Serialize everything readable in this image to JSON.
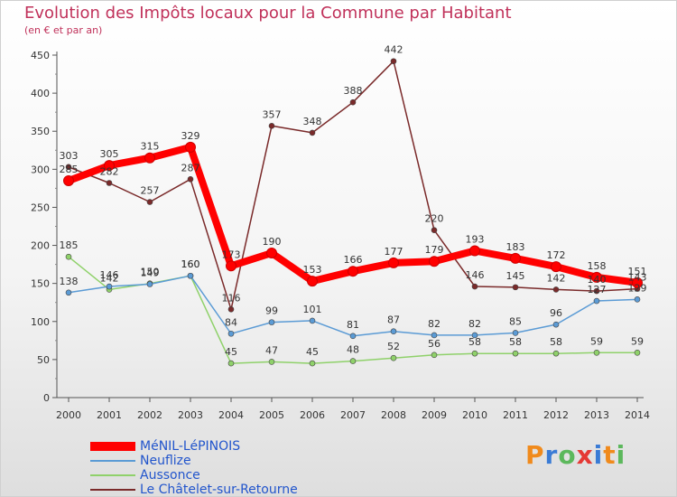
{
  "header": {
    "title": "Evolution des Impôts locaux pour la Commune par Habitant",
    "subtitle": "(en € et par an)"
  },
  "logo": {
    "text": "Proxiti",
    "letters": [
      "P",
      "r",
      "o",
      "x",
      "i",
      "t",
      "i"
    ]
  },
  "chart_data": {
    "type": "line",
    "title": "Evolution des Impôts locaux pour la Commune par Habitant",
    "subtitle": "(en € et par an)",
    "xlabel": "",
    "ylabel": "",
    "ylim": [
      0,
      450
    ],
    "yticks": [
      0,
      50,
      100,
      150,
      200,
      250,
      300,
      350,
      400,
      450
    ],
    "x": [
      "2000",
      "2001",
      "2002",
      "2003",
      "2004",
      "2005",
      "2006",
      "2007",
      "2008",
      "2009",
      "2010",
      "2011",
      "2012",
      "2013",
      "2014"
    ],
    "grid": false,
    "legend_position": "bottom-left",
    "series": [
      {
        "name": "MéNIL-LéPINOIS",
        "color": "#ff0000",
        "values": [
          285,
          305,
          315,
          329,
          173,
          190,
          153,
          166,
          177,
          179,
          193,
          183,
          172,
          158,
          151
        ],
        "labels": [
          "285",
          "305",
          "315",
          "329",
          "173",
          "190",
          "153",
          "166",
          "177",
          "179",
          "193",
          "183",
          "172",
          "158",
          "151"
        ]
      },
      {
        "name": "Neuflize",
        "color": "#5b9bd5",
        "values": [
          138,
          146,
          149,
          160,
          84,
          99,
          101,
          81,
          87,
          82,
          82,
          85,
          96,
          127,
          129
        ],
        "labels": [
          "138",
          "146",
          "149",
          "160",
          "84",
          "99",
          "101",
          "81",
          "87",
          "82",
          "82",
          "85",
          "96",
          "127",
          "129"
        ]
      },
      {
        "name": "Aussonce",
        "color": "#8fd16a",
        "values": [
          185,
          142,
          150,
          160,
          45,
          47,
          45,
          48,
          52,
          56,
          58,
          58,
          58,
          59,
          59
        ],
        "labels": [
          "185",
          "142",
          "150",
          "160",
          "45",
          "47",
          "45",
          "48",
          "52",
          "56",
          "58",
          "58",
          "58",
          "59",
          "59"
        ]
      },
      {
        "name": "Le Châtelet-sur-Retourne",
        "color": "#7a2a2a",
        "values": [
          303,
          282,
          257,
          287,
          116,
          357,
          348,
          388,
          442,
          220,
          146,
          145,
          142,
          140,
          143
        ],
        "labels": [
          "303",
          "282",
          "257",
          "287",
          "116",
          "357",
          "348",
          "388",
          "442",
          "220",
          "146",
          "145",
          "142",
          "140",
          "143"
        ]
      }
    ]
  }
}
